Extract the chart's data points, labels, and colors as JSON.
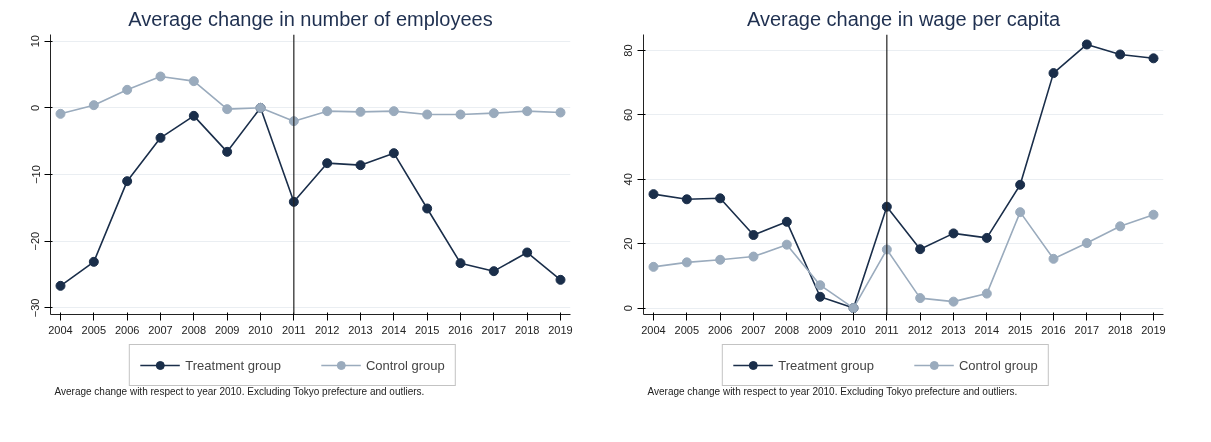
{
  "chart_data": [
    {
      "type": "line",
      "title": "Average change in number of employees",
      "x": [
        2004,
        2005,
        2006,
        2007,
        2008,
        2009,
        2010,
        2011,
        2012,
        2013,
        2014,
        2015,
        2016,
        2017,
        2018,
        2019
      ],
      "series": [
        {
          "name": "Treatment group",
          "color": "#1a2e4a",
          "values": [
            -26.7,
            -23.1,
            -11.0,
            -4.5,
            -1.2,
            -6.6,
            0,
            -14.1,
            -8.3,
            -8.6,
            -6.8,
            -15.1,
            -23.3,
            -24.5,
            -21.7,
            -25.8
          ]
        },
        {
          "name": "Control group",
          "color": "#9aabbd",
          "values": [
            -0.9,
            0.4,
            2.7,
            4.7,
            4.0,
            -0.2,
            0,
            -2.0,
            -0.5,
            -0.6,
            -0.5,
            -1.0,
            -1.0,
            -0.8,
            -0.5,
            -0.7
          ]
        }
      ],
      "xlim": [
        2003.7,
        2019.3
      ],
      "xticks": [
        2004,
        2005,
        2006,
        2007,
        2008,
        2009,
        2010,
        2011,
        2012,
        2013,
        2014,
        2015,
        2016,
        2017,
        2018,
        2019
      ],
      "ylim": [
        -31,
        11
      ],
      "yticks": [
        -30,
        -20,
        -10,
        0,
        10
      ],
      "ref_lines": [
        {
          "axis": "x",
          "value": 2011,
          "color": "#222222"
        }
      ],
      "grid": "y",
      "legend": "bottom",
      "marker": "circle",
      "line_style": "solid",
      "annotations": [
        "Average change with respect to year 2010. Excluding Tokyo prefecture and outliers."
      ]
    },
    {
      "type": "line",
      "title": "Average change in wage per capita",
      "x": [
        2004,
        2005,
        2006,
        2007,
        2008,
        2009,
        2010,
        2011,
        2012,
        2013,
        2014,
        2015,
        2016,
        2017,
        2018,
        2019
      ],
      "series": [
        {
          "name": "Treatment group",
          "color": "#1a2e4a",
          "values": [
            35.4,
            33.8,
            34.1,
            22.7,
            26.8,
            3.5,
            0,
            31.5,
            18.3,
            23.2,
            21.8,
            38.3,
            73.0,
            81.9,
            78.8,
            77.6
          ]
        },
        {
          "name": "Control group",
          "color": "#9aabbd",
          "values": [
            12.8,
            14.2,
            15.0,
            16.0,
            19.7,
            7.1,
            0,
            18.2,
            3.1,
            2.0,
            4.5,
            29.8,
            15.3,
            20.2,
            25.4,
            29.0
          ]
        }
      ],
      "xlim": [
        2003.7,
        2019.3
      ],
      "xticks": [
        2004,
        2005,
        2006,
        2007,
        2008,
        2009,
        2010,
        2011,
        2012,
        2013,
        2014,
        2015,
        2016,
        2017,
        2018,
        2019
      ],
      "ylim": [
        -2,
        85
      ],
      "yticks": [
        0,
        20,
        40,
        60,
        80
      ],
      "ref_lines": [
        {
          "axis": "x",
          "value": 2011,
          "color": "#222222"
        }
      ],
      "grid": "y",
      "legend": "bottom",
      "marker": "circle",
      "line_style": "solid",
      "annotations": [
        "Average change with respect to year 2010. Excluding Tokyo prefecture and outliers."
      ]
    }
  ]
}
